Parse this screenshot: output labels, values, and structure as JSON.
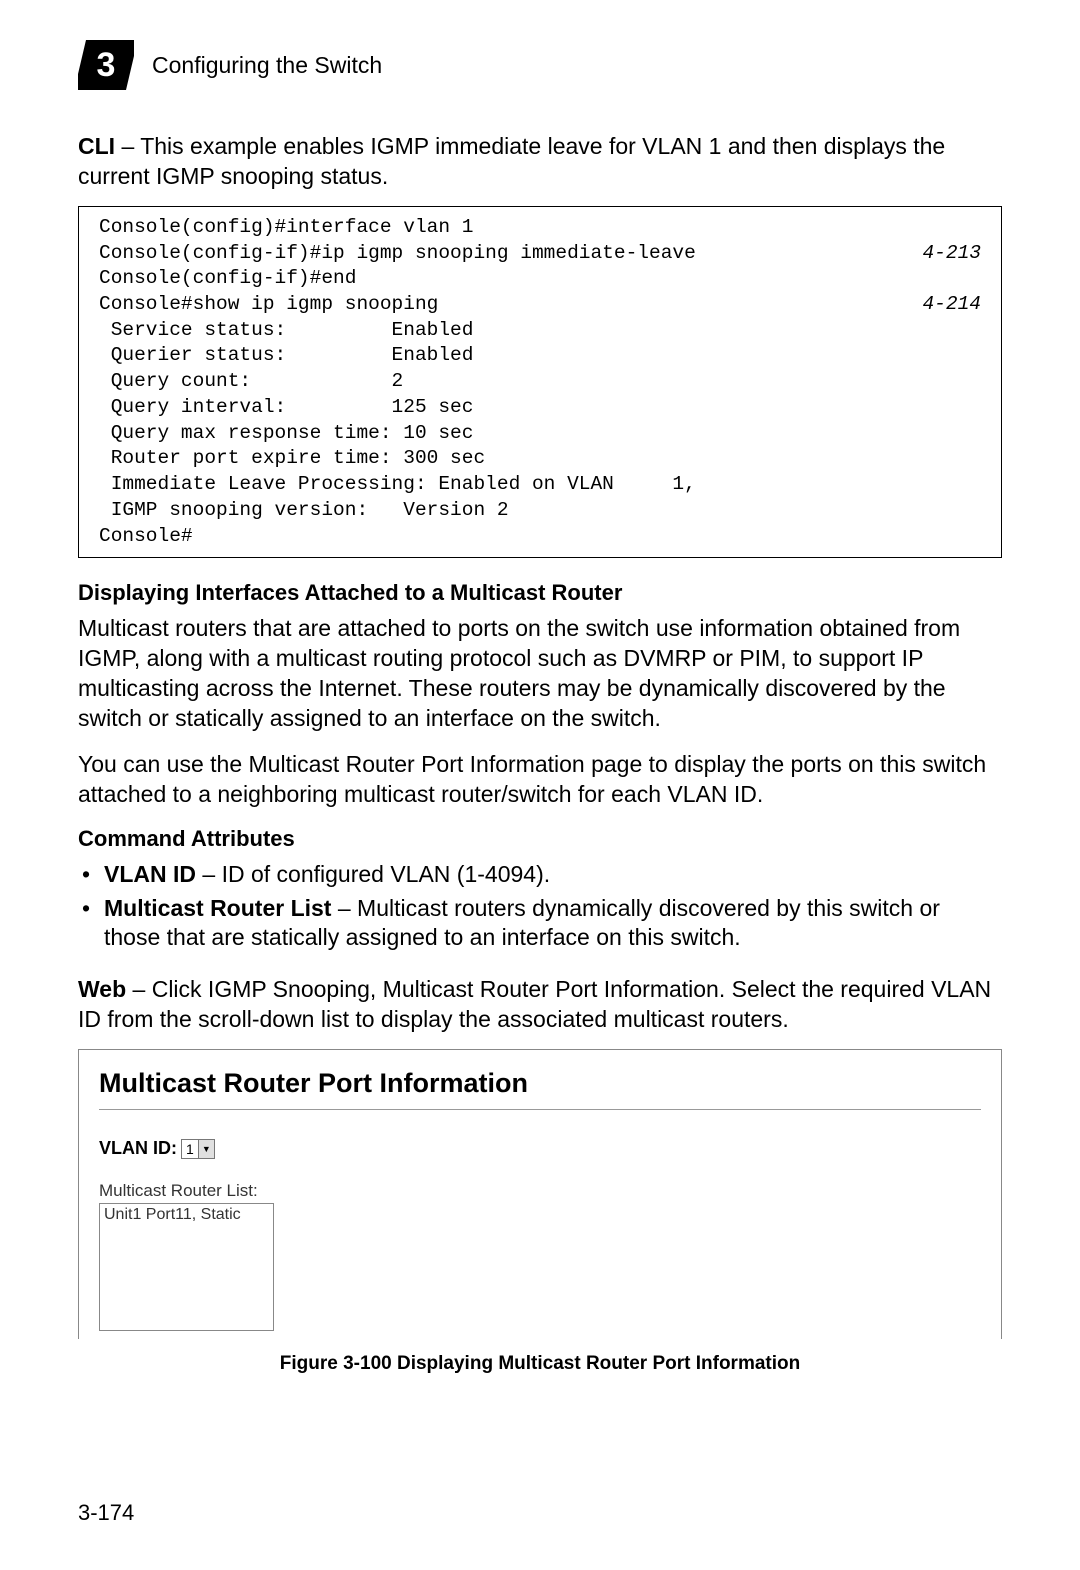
{
  "header": {
    "chapter_number": "3",
    "chapter_title": "Configuring the Switch"
  },
  "intro": {
    "prefix": "CLI",
    "text": " – This example enables IGMP immediate leave for VLAN 1 and then displays the current IGMP snooping status."
  },
  "cli": {
    "lines": [
      {
        "text": "Console(config)#interface vlan 1",
        "ref": ""
      },
      {
        "text": "Console(config-if)#ip igmp snooping immediate-leave",
        "ref": "4-213"
      },
      {
        "text": "Console(config-if)#end",
        "ref": ""
      },
      {
        "text": "Console#show ip igmp snooping",
        "ref": "4-214"
      },
      {
        "text": " Service status:         Enabled",
        "ref": ""
      },
      {
        "text": " Querier status:         Enabled",
        "ref": ""
      },
      {
        "text": " Query count:            2",
        "ref": ""
      },
      {
        "text": " Query interval:         125 sec",
        "ref": ""
      },
      {
        "text": " Query max response time: 10 sec",
        "ref": ""
      },
      {
        "text": " Router port expire time: 300 sec",
        "ref": ""
      },
      {
        "text": " Immediate Leave Processing: Enabled on VLAN     1,",
        "ref": ""
      },
      {
        "text": " IGMP snooping version:   Version 2",
        "ref": ""
      },
      {
        "text": "Console#",
        "ref": ""
      }
    ]
  },
  "section": {
    "heading": "Displaying Interfaces Attached to a Multicast Router",
    "para1": "Multicast routers that are attached to ports on the switch use information obtained from IGMP, along with a multicast routing protocol such as DVMRP or PIM, to support IP multicasting across the Internet. These routers may be dynamically discovered by the switch or statically assigned to an interface on the switch.",
    "para2": "You can use the Multicast Router Port Information page to display the ports on this switch attached to a neighboring multicast router/switch for each VLAN ID."
  },
  "command_attrs": {
    "heading": "Command Attributes",
    "items": [
      {
        "term": "VLAN ID",
        "desc": " – ID of configured VLAN (1-4094)."
      },
      {
        "term": "Multicast Router List",
        "desc": " – Multicast routers dynamically discovered by this switch or those that are statically assigned to an interface on this switch."
      }
    ]
  },
  "web": {
    "prefix": "Web",
    "text": " – Click IGMP Snooping, Multicast Router Port Information. Select the required VLAN ID from the scroll-down list to display the associated multicast routers."
  },
  "figure": {
    "title": "Multicast Router Port Information",
    "vlan_label": "VLAN ID:",
    "vlan_value": "1",
    "mr_label": "Multicast Router List:",
    "mr_items": [
      "Unit1 Port11, Static"
    ],
    "caption": "Figure 3-100  Displaying Multicast Router Port Information"
  },
  "page_number": "3-174"
}
